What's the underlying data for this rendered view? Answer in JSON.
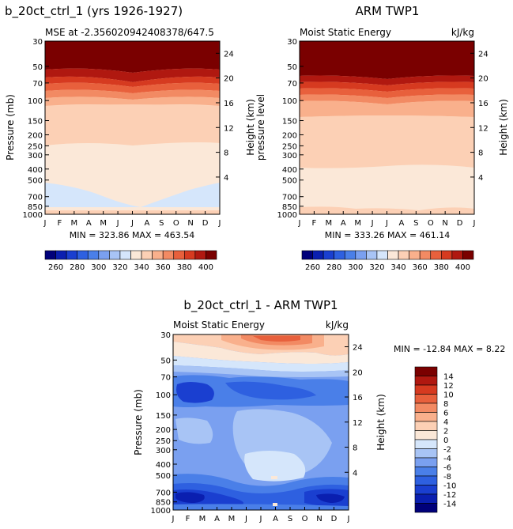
{
  "chart_data": [
    {
      "type": "heatmap",
      "title": "b_20ct_ctrl_1 (yrs 1926-1927)",
      "subtitle": "MSE at -2.356020942408378/647.5",
      "ylabel": "Pressure (mb)",
      "ylabel_right": "Height (km)",
      "x": [
        "J",
        "F",
        "M",
        "A",
        "M",
        "J",
        "J",
        "A",
        "S",
        "O",
        "N",
        "D",
        "J"
      ],
      "y_ticks": [
        "30",
        "50",
        "70",
        "100",
        "150",
        "200",
        "250",
        "300",
        "400",
        "500",
        "700",
        "850",
        "1000"
      ],
      "y_ticks_right": [
        "24",
        "20",
        "16",
        "12",
        "8",
        "4"
      ],
      "stats": "MIN = 323.86 MAX = 463.54",
      "colorbar": {
        "ticks": [
          "260",
          "280",
          "300",
          "320",
          "340",
          "360",
          "380",
          "400"
        ]
      }
    },
    {
      "type": "heatmap",
      "title": "ARM TWP1",
      "subtitle": "Moist Static Energy",
      "units": "kJ/kg",
      "ylabel": "pressure level",
      "ylabel_right": "Height (km)",
      "x": [
        "J",
        "F",
        "M",
        "A",
        "M",
        "J",
        "J",
        "A",
        "S",
        "O",
        "N",
        "D",
        "J"
      ],
      "y_ticks": [
        "30",
        "50",
        "70",
        "100",
        "150",
        "200",
        "250",
        "300",
        "400",
        "500",
        "700",
        "850",
        "1000"
      ],
      "y_ticks_right": [
        "24",
        "20",
        "16",
        "12",
        "8",
        "4"
      ],
      "stats": "MIN = 333.26 MAX = 461.14",
      "colorbar": {
        "ticks": [
          "260",
          "280",
          "300",
          "320",
          "340",
          "360",
          "380",
          "400"
        ]
      }
    },
    {
      "type": "heatmap",
      "title": "b_20ct_ctrl_1 - ARM TWP1",
      "subtitle": "Moist Static Energy",
      "units": "kJ/kg",
      "ylabel": "Pressure (mb)",
      "ylabel_right": "Height (km)",
      "x": [
        "J",
        "F",
        "M",
        "A",
        "M",
        "J",
        "J",
        "A",
        "S",
        "O",
        "N",
        "D",
        "J"
      ],
      "y_ticks": [
        "30",
        "50",
        "70",
        "100",
        "150",
        "200",
        "250",
        "300",
        "400",
        "500",
        "700",
        "850",
        "1000"
      ],
      "y_ticks_right": [
        "24",
        "20",
        "16",
        "12",
        "8",
        "4"
      ],
      "stats": "MIN = -12.84 MAX =    8.22",
      "colorbar": {
        "ticks": [
          "14",
          "12",
          "10",
          "8",
          "6",
          "4",
          "2",
          "0",
          "-2",
          "-4",
          "-6",
          "-8",
          "-10",
          "-12",
          "-14"
        ]
      }
    }
  ],
  "palettes": {
    "abs": [
      "#00007a",
      "#0a1fb0",
      "#1a3fd0",
      "#2e60e0",
      "#4a7fe8",
      "#7aa0f0",
      "#a8c4f5",
      "#d5e6fb",
      "#fbe8d8",
      "#fcd0b5",
      "#f9b08c",
      "#f28a63",
      "#e8603c",
      "#d63a20",
      "#b01810",
      "#7a0000"
    ],
    "diff": [
      "#7a0000",
      "#b01810",
      "#d63a20",
      "#e8603c",
      "#f28a63",
      "#f9b08c",
      "#fcd0b5",
      "#fbe8d8",
      "#d5e6fb",
      "#a8c4f5",
      "#7aa0f0",
      "#4a7fe8",
      "#2e60e0",
      "#1a3fd0",
      "#0a1fb0",
      "#00007a"
    ]
  }
}
